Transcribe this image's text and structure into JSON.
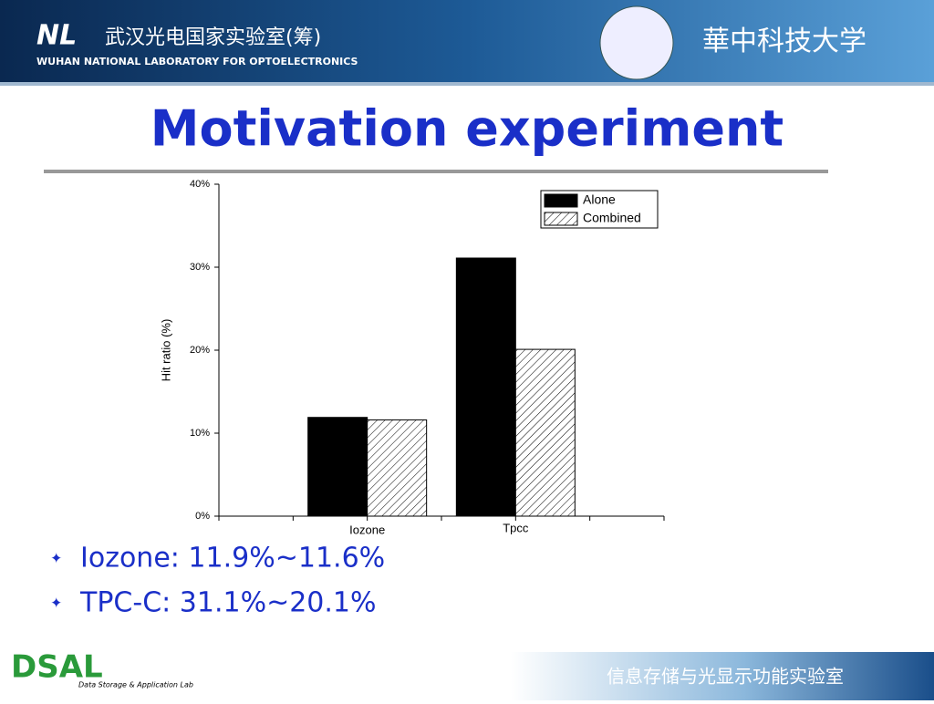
{
  "header": {
    "lab_cn": "武汉光电国家实验室(筹)",
    "lab_en": "WUHAN NATIONAL LABORATORY FOR OPTOELECTRONICS",
    "university": "華中科技大学"
  },
  "slide_title": "Motivation experiment",
  "bullets": [
    "Iozone: 11.9%~11.6%",
    "TPC-C: 31.1%~20.1%"
  ],
  "footer": {
    "logo": "DSAL",
    "logo_sub": "Data Storage & Application Lab",
    "lab_cn": "信息存储与光显示功能实验室"
  },
  "chart_data": {
    "type": "bar",
    "y_label": "Hit ratio (%)",
    "categories": [
      "Iozone",
      "Tpcc"
    ],
    "series": [
      {
        "name": "Alone",
        "color": "#000000",
        "values": [
          11.9,
          31.1
        ]
      },
      {
        "name": "Combined",
        "color": "#ffffff",
        "hatch": true,
        "values": [
          11.6,
          20.1
        ]
      }
    ],
    "ylim": [
      0,
      40
    ],
    "yticks": [
      {
        "value": 0,
        "label": "0%"
      },
      {
        "value": 10,
        "label": "10%"
      },
      {
        "value": 20,
        "label": "20%"
      },
      {
        "value": 30,
        "label": "30%"
      },
      {
        "value": 40,
        "label": "40%"
      }
    ],
    "legend": "upper-right"
  }
}
